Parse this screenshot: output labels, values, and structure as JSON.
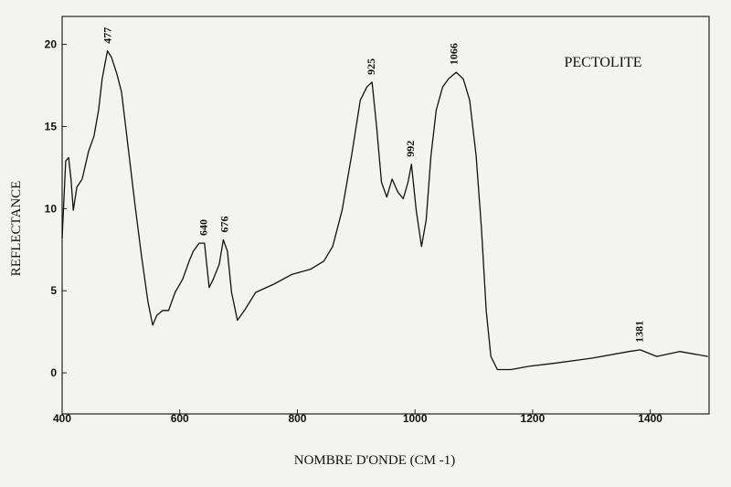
{
  "chart_data": {
    "type": "line",
    "title": "PECTOLITE",
    "x_label": "NOMBRE D'ONDE (CM -1)",
    "y_label": "REFLECTANCE",
    "color": "#111111",
    "xlim": [
      400,
      1500
    ],
    "ylim": [
      -2.5,
      21.7
    ],
    "xticks": [
      400,
      600,
      800,
      1000,
      1200,
      1400
    ],
    "yticks": [
      0,
      5,
      10,
      15,
      20
    ],
    "grid": false,
    "x": [
      400,
      406,
      411,
      415,
      419,
      425,
      434,
      445,
      454,
      462,
      468,
      477,
      484,
      493,
      501,
      512,
      524,
      535,
      546,
      554,
      561,
      571,
      581,
      592,
      605,
      616,
      623,
      633,
      642,
      650,
      657,
      667,
      674,
      681,
      688,
      698,
      710,
      729,
      760,
      791,
      822,
      845,
      860,
      876,
      892,
      907,
      918,
      927,
      935,
      943,
      952,
      961,
      971,
      980,
      988,
      994,
      1002,
      1011,
      1019,
      1027,
      1036,
      1047,
      1057,
      1070,
      1082,
      1093,
      1104,
      1113,
      1121,
      1129,
      1140,
      1163,
      1194,
      1240,
      1302,
      1364,
      1383,
      1411,
      1450,
      1498
    ],
    "values": [
      8.2,
      12.9,
      13.1,
      11.8,
      9.9,
      11.3,
      11.8,
      13.5,
      14.4,
      16,
      17.9,
      19.6,
      19.2,
      18.2,
      17.1,
      13.8,
      10.2,
      7.1,
      4.3,
      2.9,
      3.5,
      3.8,
      3.8,
      4.9,
      5.7,
      6.8,
      7.4,
      7.9,
      7.9,
      5.2,
      5.7,
      6.6,
      8.1,
      7.4,
      4.9,
      3.2,
      3.8,
      4.9,
      5.4,
      6.0,
      6.3,
      6.8,
      7.7,
      9.9,
      13.2,
      16.6,
      17.4,
      17.7,
      14.9,
      11.6,
      10.7,
      11.8,
      11.0,
      10.6,
      11.6,
      12.7,
      9.9,
      7.7,
      9.3,
      13.2,
      16,
      17.4,
      17.9,
      18.3,
      17.9,
      16.6,
      13.2,
      8.8,
      3.8,
      1.0,
      0.2,
      0.2,
      0.4,
      0.6,
      0.9,
      1.3,
      1.4,
      1.0,
      1.3,
      1.0
    ],
    "annotations": [
      {
        "x": 477,
        "y": 19.6,
        "text": "477"
      },
      {
        "x": 640,
        "y": 7.9,
        "text": "640"
      },
      {
        "x": 676,
        "y": 8.1,
        "text": "676"
      },
      {
        "x": 925,
        "y": 17.7,
        "text": "925"
      },
      {
        "x": 992,
        "y": 12.7,
        "text": "992"
      },
      {
        "x": 1066,
        "y": 18.3,
        "text": "1066"
      },
      {
        "x": 1381,
        "y": 1.4,
        "text": "1381"
      }
    ]
  }
}
